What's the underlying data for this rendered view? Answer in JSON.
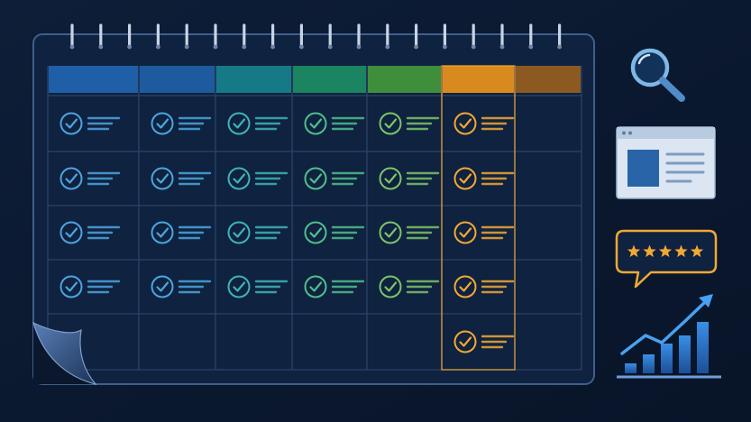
{
  "calendar": {
    "columns": [
      {
        "header_color": "#1f5fa8",
        "accent": "#4ea3e0"
      },
      {
        "header_color": "#1d5a9e",
        "accent": "#4aa6de"
      },
      {
        "header_color": "#167a86",
        "accent": "#3fb3b8"
      },
      {
        "header_color": "#1b8460",
        "accent": "#4fbf8c"
      },
      {
        "header_color": "#3f8e3c",
        "accent": "#7cc46a"
      },
      {
        "header_color": "#d98a1e",
        "accent": "#f0a836"
      },
      {
        "header_color": "#8c5a20",
        "accent": "#b07830"
      }
    ],
    "rows": 5,
    "checked": [
      [
        true,
        true,
        true,
        true,
        true,
        true,
        false
      ],
      [
        true,
        true,
        true,
        true,
        true,
        true,
        false
      ],
      [
        true,
        true,
        true,
        true,
        true,
        true,
        false
      ],
      [
        true,
        true,
        true,
        true,
        true,
        true,
        false
      ],
      [
        false,
        false,
        false,
        false,
        false,
        true,
        false
      ]
    ],
    "page_curl_corner": "bottom-left"
  },
  "sidebar_icons": [
    {
      "name": "magnifier-icon",
      "color": "#7fb8e6"
    },
    {
      "name": "web-page-icon",
      "color": "#dbe6f2"
    },
    {
      "name": "review-stars-icon",
      "color": "#f0a836",
      "stars": 5
    },
    {
      "name": "growth-chart-icon",
      "color": "#2f7fd6"
    }
  ],
  "colors": {
    "background": "#0c1a30",
    "calendar_frame": "#3f5f8c",
    "grid_line": "#2a4468"
  }
}
